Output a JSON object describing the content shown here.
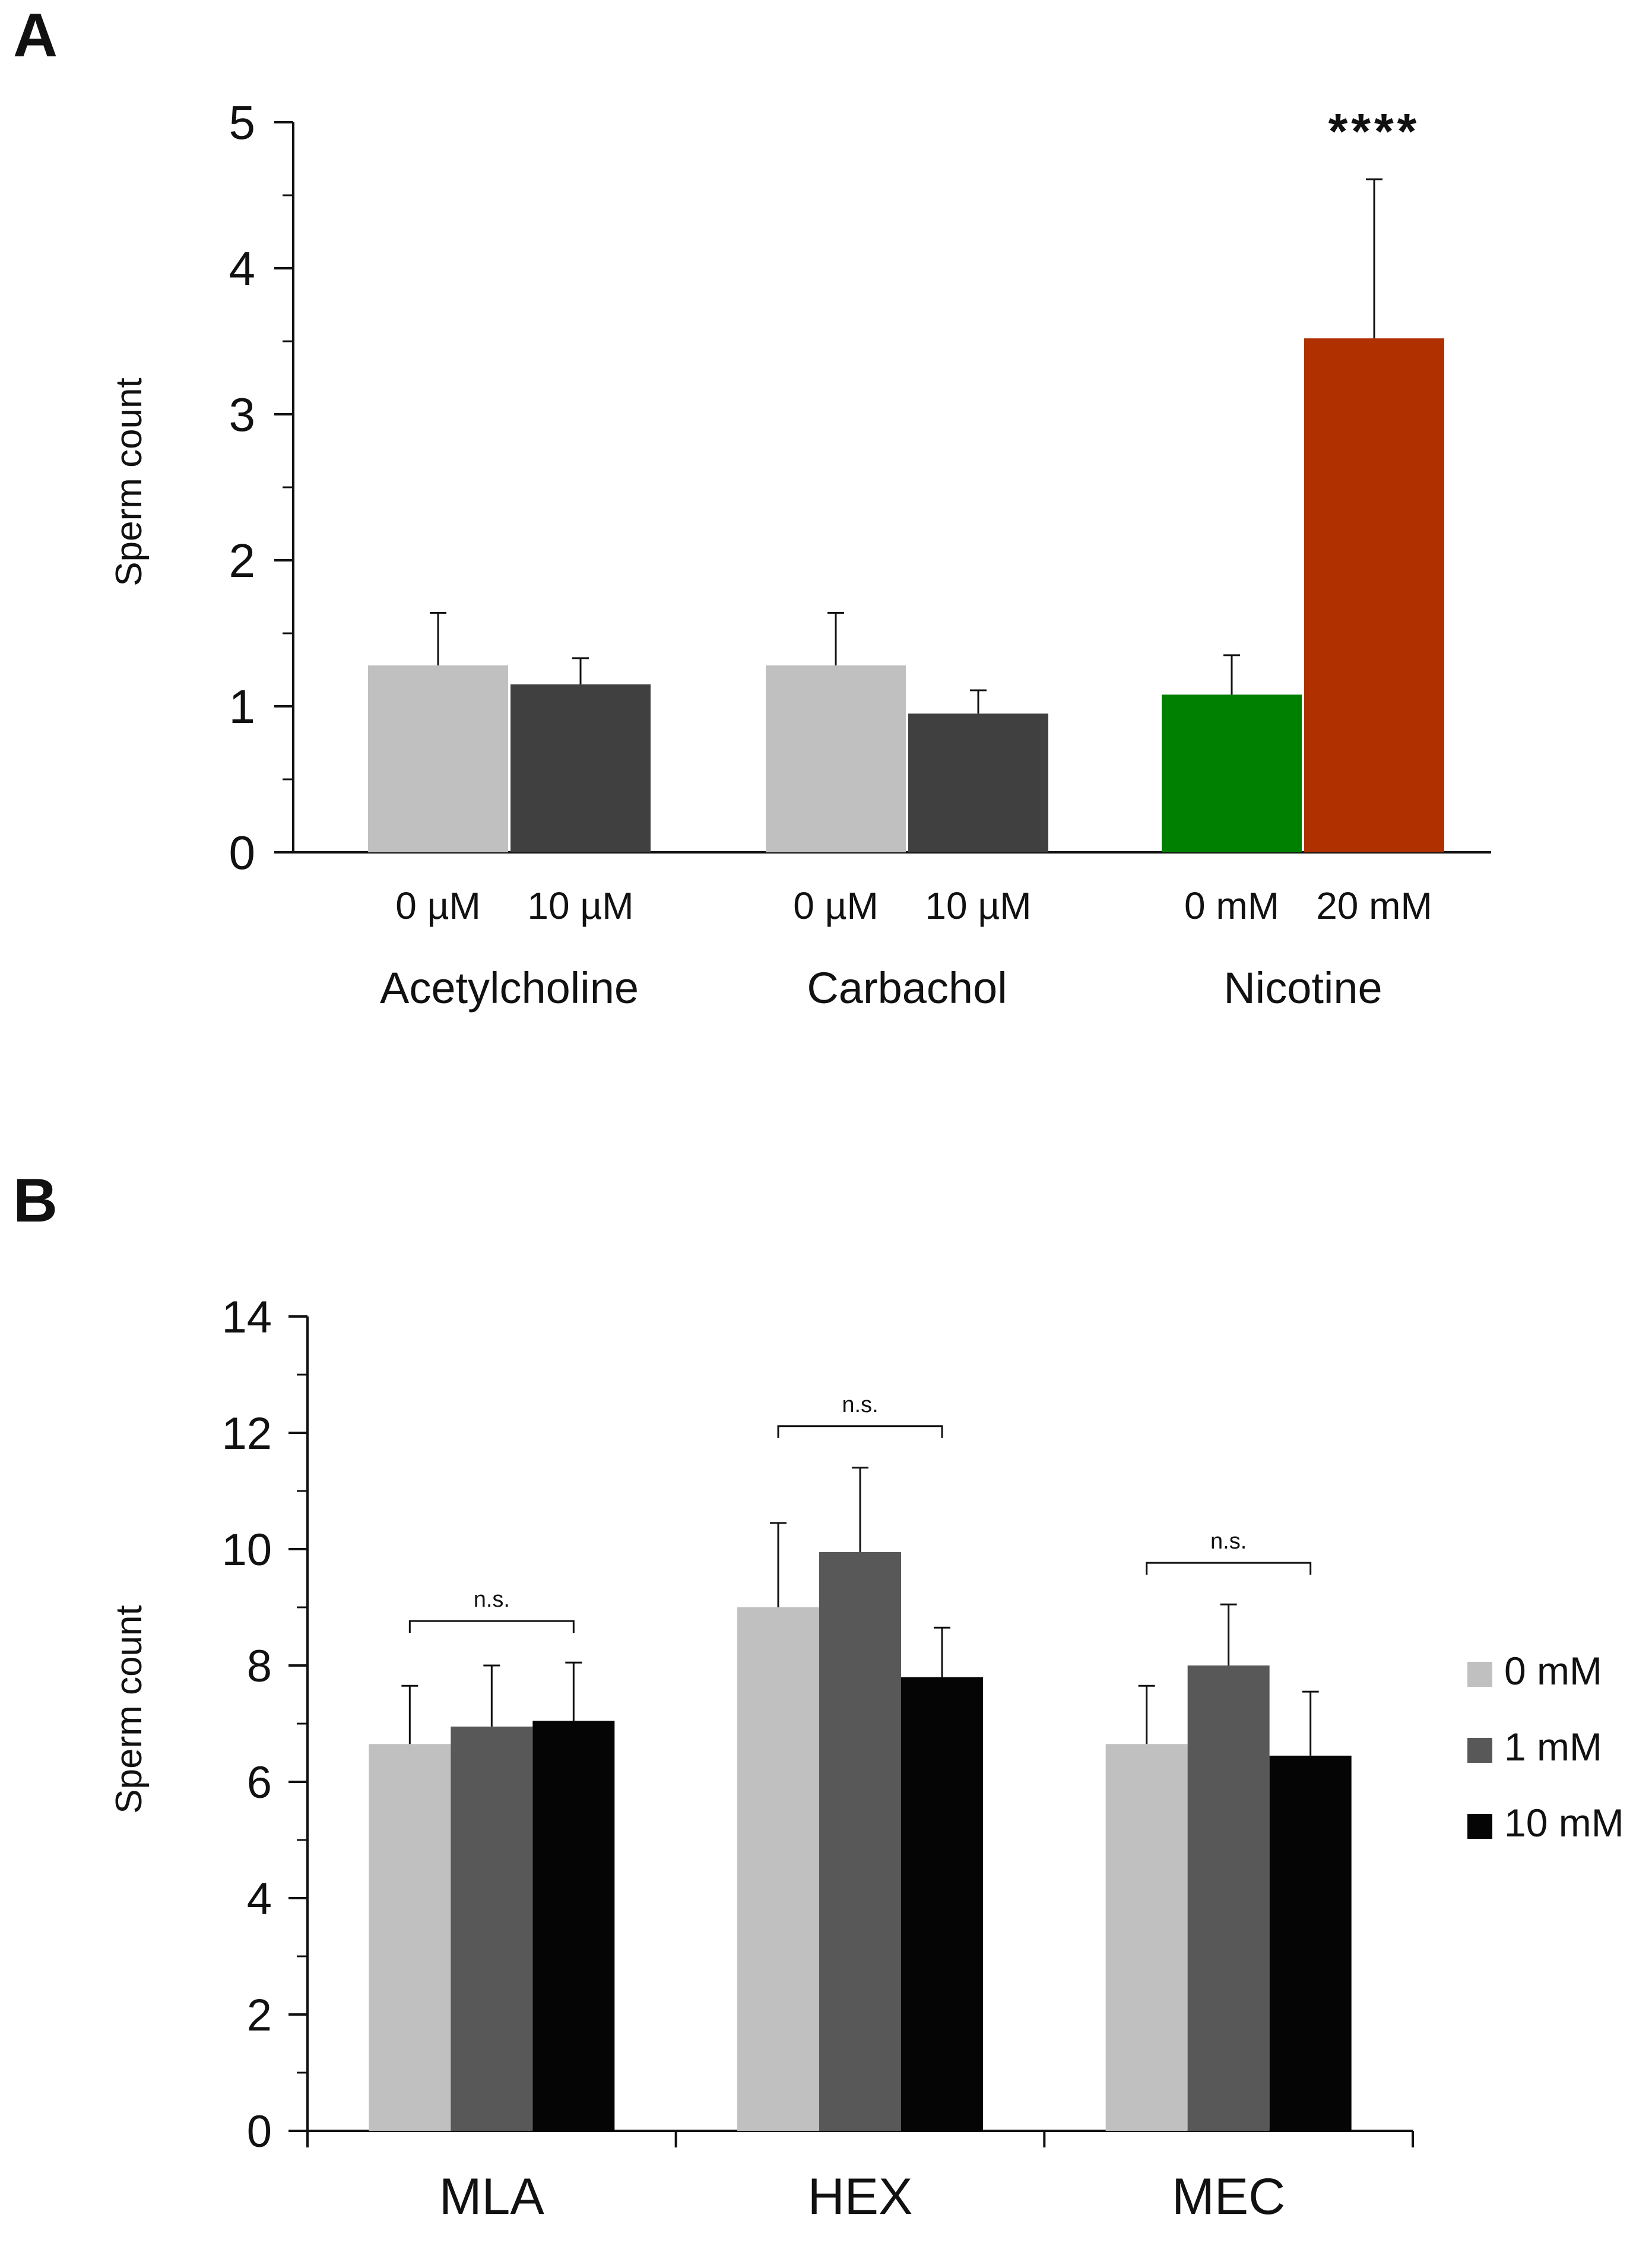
{
  "chart_data": [
    {
      "panel": "A",
      "type": "bar",
      "xlabel": "",
      "ylabel": "Sperm count",
      "ylim": [
        0,
        5
      ],
      "yticks": [
        "0",
        "1",
        "2",
        "3",
        "4",
        "5"
      ],
      "groups": [
        {
          "name": "Acetylcholine",
          "bars": [
            {
              "label": "0 µM",
              "value": 1.28,
              "error": 0.36,
              "color": "#c0c0c0"
            },
            {
              "label": "10 µM",
              "value": 1.15,
              "error": 0.18,
              "color": "#404040"
            }
          ]
        },
        {
          "name": "Carbachol",
          "bars": [
            {
              "label": "0 µM",
              "value": 1.28,
              "error": 0.36,
              "color": "#c0c0c0"
            },
            {
              "label": "10 µM",
              "value": 0.95,
              "error": 0.16,
              "color": "#404040"
            }
          ]
        },
        {
          "name": "Nicotine",
          "bars": [
            {
              "label": "0 mM",
              "value": 1.08,
              "error": 0.27,
              "color": "#008000"
            },
            {
              "label": "20 mM",
              "value": 3.52,
              "error": 1.09,
              "color": "#b03000",
              "annotation": "****"
            }
          ]
        }
      ]
    },
    {
      "panel": "B",
      "type": "bar",
      "xlabel": "",
      "ylabel": "Sperm count",
      "ylim": [
        0,
        14
      ],
      "yticks": [
        "0",
        "2",
        "4",
        "6",
        "8",
        "10",
        "12",
        "14"
      ],
      "categories": [
        "MLA",
        "HEX",
        "MEC"
      ],
      "series": [
        {
          "name": "0 mM",
          "color": "#c0c0c0",
          "values": [
            6.65,
            9.0,
            6.65
          ],
          "errors": [
            1.0,
            1.45,
            1.0
          ]
        },
        {
          "name": "1 mM",
          "color": "#585858",
          "values": [
            6.95,
            9.95,
            8.0
          ],
          "errors": [
            1.05,
            1.45,
            1.05
          ]
        },
        {
          "name": "10 mM",
          "color": "#050505",
          "values": [
            7.05,
            7.8,
            6.45
          ],
          "errors": [
            1.0,
            0.85,
            1.1
          ]
        }
      ],
      "significance": [
        "n.s.",
        "n.s.",
        "n.s."
      ],
      "legend_position": "right"
    }
  ]
}
